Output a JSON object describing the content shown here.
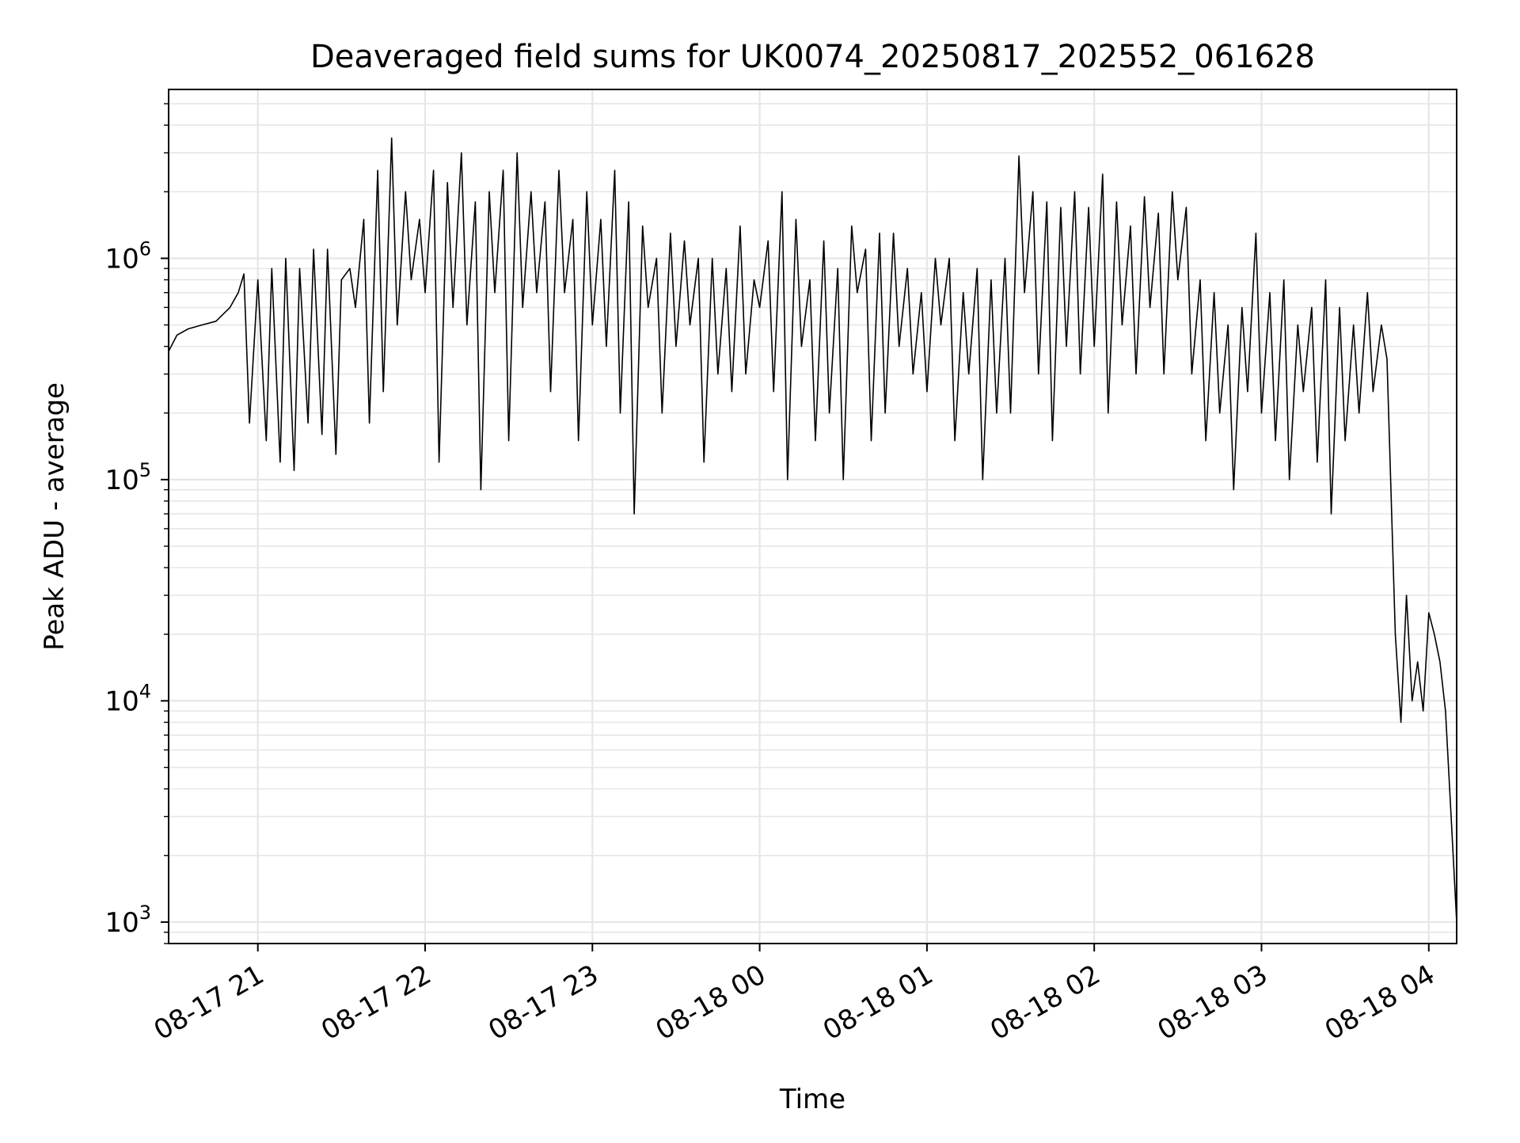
{
  "chart_data": {
    "type": "line",
    "title": "Deaveraged field sums for UK0074_20250817_202552_061628",
    "xlabel": "Time",
    "ylabel": "Peak ADU - average",
    "yscale": "log",
    "grid": true,
    "line_color": "#000000",
    "grid_color": "#e6e6e6",
    "xlim": [
      "2025-08-17 20:28",
      "2025-08-18 04:10"
    ],
    "ylim": [
      800,
      5800000
    ],
    "x_ticks": [
      {
        "value": "2025-08-17 21:00",
        "label": "08-17 21"
      },
      {
        "value": "2025-08-17 22:00",
        "label": "08-17 22"
      },
      {
        "value": "2025-08-17 23:00",
        "label": "08-17 23"
      },
      {
        "value": "2025-08-18 00:00",
        "label": "08-18 00"
      },
      {
        "value": "2025-08-18 01:00",
        "label": "08-18 01"
      },
      {
        "value": "2025-08-18 02:00",
        "label": "08-18 02"
      },
      {
        "value": "2025-08-18 03:00",
        "label": "08-18 03"
      },
      {
        "value": "2025-08-18 04:00",
        "label": "08-18 04"
      }
    ],
    "y_ticks": [
      {
        "value": 1000,
        "base": "10",
        "exp": "3"
      },
      {
        "value": 10000,
        "base": "10",
        "exp": "4"
      },
      {
        "value": 100000,
        "base": "10",
        "exp": "5"
      },
      {
        "value": 1000000,
        "base": "10",
        "exp": "6"
      }
    ],
    "series": [
      {
        "x": [
          "2025-08-17 20:28",
          "2025-08-17 20:31",
          "2025-08-17 20:35",
          "2025-08-17 20:40",
          "2025-08-17 20:45",
          "2025-08-17 20:50",
          "2025-08-17 20:53",
          "2025-08-17 20:55",
          "2025-08-17 20:57",
          "2025-08-17 21:00",
          "2025-08-17 21:03",
          "2025-08-17 21:05",
          "2025-08-17 21:08",
          "2025-08-17 21:10",
          "2025-08-17 21:13",
          "2025-08-17 21:15",
          "2025-08-17 21:18",
          "2025-08-17 21:20",
          "2025-08-17 21:23",
          "2025-08-17 21:25",
          "2025-08-17 21:28",
          "2025-08-17 21:30",
          "2025-08-17 21:33",
          "2025-08-17 21:35",
          "2025-08-17 21:38",
          "2025-08-17 21:40",
          "2025-08-17 21:43",
          "2025-08-17 21:45",
          "2025-08-17 21:48",
          "2025-08-17 21:50",
          "2025-08-17 21:53",
          "2025-08-17 21:55",
          "2025-08-17 21:58",
          "2025-08-17 22:00",
          "2025-08-17 22:03",
          "2025-08-17 22:05",
          "2025-08-17 22:08",
          "2025-08-17 22:10",
          "2025-08-17 22:13",
          "2025-08-17 22:15",
          "2025-08-17 22:18",
          "2025-08-17 22:20",
          "2025-08-17 22:23",
          "2025-08-17 22:25",
          "2025-08-17 22:28",
          "2025-08-17 22:30",
          "2025-08-17 22:33",
          "2025-08-17 22:35",
          "2025-08-17 22:38",
          "2025-08-17 22:40",
          "2025-08-17 22:43",
          "2025-08-17 22:45",
          "2025-08-17 22:48",
          "2025-08-17 22:50",
          "2025-08-17 22:53",
          "2025-08-17 22:55",
          "2025-08-17 22:58",
          "2025-08-17 23:00",
          "2025-08-17 23:03",
          "2025-08-17 23:05",
          "2025-08-17 23:08",
          "2025-08-17 23:10",
          "2025-08-17 23:13",
          "2025-08-17 23:15",
          "2025-08-17 23:18",
          "2025-08-17 23:20",
          "2025-08-17 23:23",
          "2025-08-17 23:25",
          "2025-08-17 23:28",
          "2025-08-17 23:30",
          "2025-08-17 23:33",
          "2025-08-17 23:35",
          "2025-08-17 23:38",
          "2025-08-17 23:40",
          "2025-08-17 23:43",
          "2025-08-17 23:45",
          "2025-08-17 23:48",
          "2025-08-17 23:50",
          "2025-08-17 23:53",
          "2025-08-17 23:55",
          "2025-08-17 23:58",
          "2025-08-18 00:00",
          "2025-08-18 00:03",
          "2025-08-18 00:05",
          "2025-08-18 00:08",
          "2025-08-18 00:10",
          "2025-08-18 00:13",
          "2025-08-18 00:15",
          "2025-08-18 00:18",
          "2025-08-18 00:20",
          "2025-08-18 00:23",
          "2025-08-18 00:25",
          "2025-08-18 00:28",
          "2025-08-18 00:30",
          "2025-08-18 00:33",
          "2025-08-18 00:35",
          "2025-08-18 00:38",
          "2025-08-18 00:40",
          "2025-08-18 00:43",
          "2025-08-18 00:45",
          "2025-08-18 00:48",
          "2025-08-18 00:50",
          "2025-08-18 00:53",
          "2025-08-18 00:55",
          "2025-08-18 00:58",
          "2025-08-18 01:00",
          "2025-08-18 01:03",
          "2025-08-18 01:05",
          "2025-08-18 01:08",
          "2025-08-18 01:10",
          "2025-08-18 01:13",
          "2025-08-18 01:15",
          "2025-08-18 01:18",
          "2025-08-18 01:20",
          "2025-08-18 01:23",
          "2025-08-18 01:25",
          "2025-08-18 01:28",
          "2025-08-18 01:30",
          "2025-08-18 01:33",
          "2025-08-18 01:35",
          "2025-08-18 01:38",
          "2025-08-18 01:40",
          "2025-08-18 01:43",
          "2025-08-18 01:45",
          "2025-08-18 01:48",
          "2025-08-18 01:50",
          "2025-08-18 01:53",
          "2025-08-18 01:55",
          "2025-08-18 01:58",
          "2025-08-18 02:00",
          "2025-08-18 02:03",
          "2025-08-18 02:05",
          "2025-08-18 02:08",
          "2025-08-18 02:10",
          "2025-08-18 02:13",
          "2025-08-18 02:15",
          "2025-08-18 02:18",
          "2025-08-18 02:20",
          "2025-08-18 02:23",
          "2025-08-18 02:25",
          "2025-08-18 02:28",
          "2025-08-18 02:30",
          "2025-08-18 02:33",
          "2025-08-18 02:35",
          "2025-08-18 02:38",
          "2025-08-18 02:40",
          "2025-08-18 02:43",
          "2025-08-18 02:45",
          "2025-08-18 02:48",
          "2025-08-18 02:50",
          "2025-08-18 02:53",
          "2025-08-18 02:55",
          "2025-08-18 02:58",
          "2025-08-18 03:00",
          "2025-08-18 03:03",
          "2025-08-18 03:05",
          "2025-08-18 03:08",
          "2025-08-18 03:10",
          "2025-08-18 03:13",
          "2025-08-18 03:15",
          "2025-08-18 03:18",
          "2025-08-18 03:20",
          "2025-08-18 03:23",
          "2025-08-18 03:25",
          "2025-08-18 03:28",
          "2025-08-18 03:30",
          "2025-08-18 03:33",
          "2025-08-18 03:35",
          "2025-08-18 03:38",
          "2025-08-18 03:40",
          "2025-08-18 03:43",
          "2025-08-18 03:45",
          "2025-08-18 03:48",
          "2025-08-18 03:50",
          "2025-08-18 03:52",
          "2025-08-18 03:54",
          "2025-08-18 03:56",
          "2025-08-18 03:58",
          "2025-08-18 04:00",
          "2025-08-18 04:02",
          "2025-08-18 04:04",
          "2025-08-18 04:06",
          "2025-08-18 04:08",
          "2025-08-18 04:10"
        ],
        "y": [
          380000,
          450000,
          480000,
          500000,
          520000,
          600000,
          700000,
          850000,
          180000,
          800000,
          150000,
          900000,
          120000,
          1000000,
          110000,
          900000,
          180000,
          1100000,
          160000,
          1100000,
          130000,
          800000,
          900000,
          600000,
          1500000,
          180000,
          2500000,
          250000,
          3500000,
          500000,
          2000000,
          800000,
          1500000,
          700000,
          2500000,
          120000,
          2200000,
          600000,
          3000000,
          500000,
          1800000,
          90000,
          2000000,
          700000,
          2500000,
          150000,
          3000000,
          600000,
          2000000,
          700000,
          1800000,
          250000,
          2500000,
          700000,
          1500000,
          150000,
          2000000,
          500000,
          1500000,
          400000,
          2500000,
          200000,
          1800000,
          70000,
          1400000,
          600000,
          1000000,
          200000,
          1300000,
          400000,
          1200000,
          500000,
          1000000,
          120000,
          1000000,
          300000,
          900000,
          250000,
          1400000,
          300000,
          800000,
          600000,
          1200000,
          250000,
          2000000,
          100000,
          1500000,
          400000,
          800000,
          150000,
          1200000,
          200000,
          900000,
          100000,
          1400000,
          700000,
          1100000,
          150000,
          1300000,
          200000,
          1300000,
          400000,
          900000,
          300000,
          700000,
          250000,
          1000000,
          500000,
          1000000,
          150000,
          700000,
          300000,
          900000,
          100000,
          800000,
          200000,
          1000000,
          200000,
          2900000,
          700000,
          2000000,
          300000,
          1800000,
          150000,
          1700000,
          400000,
          2000000,
          300000,
          1700000,
          400000,
          2400000,
          200000,
          1800000,
          500000,
          1400000,
          300000,
          1900000,
          600000,
          1600000,
          300000,
          2000000,
          800000,
          1700000,
          300000,
          800000,
          150000,
          700000,
          200000,
          500000,
          90000,
          600000,
          250000,
          1300000,
          200000,
          700000,
          150000,
          800000,
          100000,
          500000,
          250000,
          600000,
          120000,
          800000,
          70000,
          600000,
          150000,
          500000,
          200000,
          700000,
          250000,
          500000,
          350000,
          20000,
          8000,
          30000,
          10000,
          15000,
          9000,
          25000,
          20000,
          15000,
          9000,
          3000,
          1000
        ]
      }
    ]
  }
}
